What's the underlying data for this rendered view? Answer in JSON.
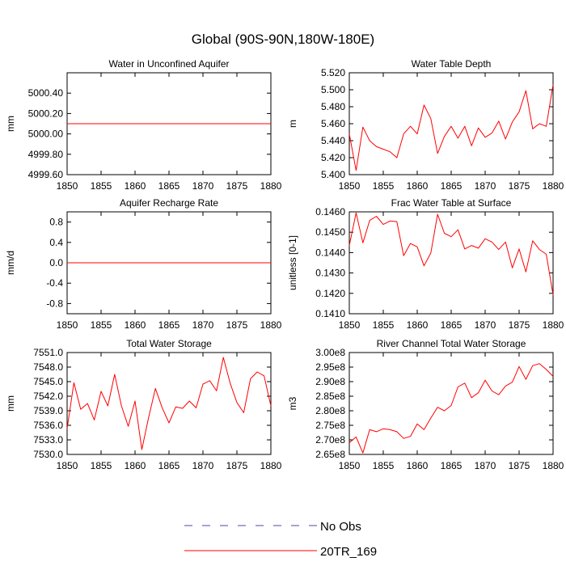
{
  "figure_title": "Global (90S-90N,180W-180E)",
  "legend": {
    "entries": [
      {
        "label": "No Obs",
        "color": "#4a4aa8",
        "style": "dashed"
      },
      {
        "label": "20TR_169",
        "color": "#ff0000",
        "style": "solid"
      }
    ]
  },
  "chart_data": [
    {
      "type": "line",
      "title": "Water in Unconfined Aquifer",
      "xlabel": "",
      "ylabel": "mm",
      "xlim": [
        1850,
        1880
      ],
      "ylim": [
        4999.6,
        5000.6
      ],
      "xticks": [
        1850,
        1855,
        1860,
        1865,
        1870,
        1875,
        1880
      ],
      "yticks": [
        4999.6,
        4999.8,
        5000.0,
        5000.2,
        5000.4
      ],
      "ytick_labels": [
        "4999.60",
        "4999.80",
        "5000.00",
        "5000.20",
        "5000.40"
      ],
      "series": [
        {
          "name": "20TR_169",
          "color": "#ff0000",
          "x": [
            1850,
            1880
          ],
          "values": [
            5000.1,
            5000.1
          ]
        }
      ]
    },
    {
      "type": "line",
      "title": "Water Table Depth",
      "xlabel": "",
      "ylabel": "m",
      "xlim": [
        1850,
        1880
      ],
      "ylim": [
        5.4,
        5.52
      ],
      "xticks": [
        1850,
        1855,
        1860,
        1865,
        1870,
        1875,
        1880
      ],
      "yticks": [
        5.4,
        5.42,
        5.44,
        5.46,
        5.48,
        5.5,
        5.52
      ],
      "ytick_labels": [
        "5.400",
        "5.420",
        "5.440",
        "5.460",
        "5.480",
        "5.500",
        "5.520"
      ],
      "series": [
        {
          "name": "20TR_169",
          "color": "#ff0000",
          "x": [
            1850,
            1851,
            1852,
            1853,
            1854,
            1855,
            1856,
            1857,
            1858,
            1859,
            1860,
            1861,
            1862,
            1863,
            1864,
            1865,
            1866,
            1867,
            1868,
            1869,
            1870,
            1871,
            1872,
            1873,
            1874,
            1875,
            1876,
            1877,
            1878,
            1879,
            1880
          ],
          "values": [
            5.448,
            5.405,
            5.456,
            5.44,
            5.433,
            5.43,
            5.427,
            5.42,
            5.448,
            5.457,
            5.448,
            5.482,
            5.466,
            5.425,
            5.445,
            5.457,
            5.443,
            5.457,
            5.434,
            5.455,
            5.444,
            5.449,
            5.463,
            5.442,
            5.462,
            5.474,
            5.499,
            5.454,
            5.46,
            5.457,
            5.506
          ]
        }
      ]
    },
    {
      "type": "line",
      "title": "Aquifer Recharge Rate",
      "xlabel": "",
      "ylabel": "mm/d",
      "xlim": [
        1850,
        1880
      ],
      "ylim": [
        -1.0,
        1.0
      ],
      "xticks": [
        1850,
        1855,
        1860,
        1865,
        1870,
        1875,
        1880
      ],
      "yticks": [
        -0.8,
        -0.4,
        0.0,
        0.4,
        0.8
      ],
      "ytick_labels": [
        "-0.8",
        "-0.4",
        "0.0",
        "0.4",
        "0.8"
      ],
      "series": [
        {
          "name": "20TR_169",
          "color": "#ff0000",
          "x": [
            1850,
            1880
          ],
          "values": [
            0.0,
            0.0
          ]
        }
      ]
    },
    {
      "type": "line",
      "title": "Frac Water Table at Surface",
      "xlabel": "",
      "ylabel": "unitless [0-1]",
      "xlim": [
        1850,
        1880
      ],
      "ylim": [
        0.141,
        0.146
      ],
      "xticks": [
        1850,
        1855,
        1860,
        1865,
        1870,
        1875,
        1880
      ],
      "yticks": [
        0.141,
        0.142,
        0.143,
        0.144,
        0.145,
        0.146
      ],
      "ytick_labels": [
        "0.1410",
        "0.1420",
        "0.1430",
        "0.1440",
        "0.1450",
        "0.1460"
      ],
      "series": [
        {
          "name": "20TR_169",
          "color": "#ff0000",
          "x": [
            1850,
            1851,
            1852,
            1853,
            1854,
            1855,
            1856,
            1857,
            1858,
            1859,
            1860,
            1861,
            1862,
            1863,
            1864,
            1865,
            1866,
            1867,
            1868,
            1869,
            1870,
            1871,
            1872,
            1873,
            1874,
            1875,
            1876,
            1877,
            1878,
            1879,
            1880
          ],
          "values": [
            0.14435,
            0.14595,
            0.14448,
            0.14558,
            0.14578,
            0.14538,
            0.14555,
            0.14552,
            0.14385,
            0.14445,
            0.14428,
            0.14335,
            0.14398,
            0.14588,
            0.14495,
            0.14478,
            0.14512,
            0.14418,
            0.14435,
            0.14422,
            0.14468,
            0.14452,
            0.14415,
            0.14452,
            0.14325,
            0.14418,
            0.14305,
            0.14458,
            0.14415,
            0.14392,
            0.14192
          ]
        }
      ]
    },
    {
      "type": "line",
      "title": "Total Water Storage",
      "xlabel": "",
      "ylabel": "mm",
      "xlim": [
        1850,
        1880
      ],
      "ylim": [
        7530.0,
        7551.0
      ],
      "xticks": [
        1850,
        1855,
        1860,
        1865,
        1870,
        1875,
        1880
      ],
      "yticks": [
        7530.0,
        7533.0,
        7536.0,
        7539.0,
        7542.0,
        7545.0,
        7548.0,
        7551.0
      ],
      "ytick_labels": [
        "7530.0",
        "7533.0",
        "7536.0",
        "7539.0",
        "7542.0",
        "7545.0",
        "7548.0",
        "7551.0"
      ],
      "series": [
        {
          "name": "20TR_169",
          "color": "#ff0000",
          "x": [
            1850,
            1851,
            1852,
            1853,
            1854,
            1855,
            1856,
            1857,
            1858,
            1859,
            1860,
            1861,
            1862,
            1863,
            1864,
            1865,
            1866,
            1867,
            1868,
            1869,
            1870,
            1871,
            1872,
            1873,
            1874,
            1875,
            1876,
            1877,
            1878,
            1879,
            1880
          ],
          "values": [
            7535.3,
            7544.8,
            7539.3,
            7540.5,
            7537.1,
            7543.0,
            7540.0,
            7546.5,
            7540.0,
            7535.8,
            7541.0,
            7531.0,
            7537.6,
            7543.6,
            7539.6,
            7536.5,
            7539.8,
            7539.5,
            7541.0,
            7539.6,
            7544.5,
            7545.2,
            7543.1,
            7550.0,
            7544.7,
            7540.7,
            7538.6,
            7545.6,
            7547.0,
            7546.2,
            7540.0
          ]
        }
      ]
    },
    {
      "type": "line",
      "title": "River Channel Total Water Storage",
      "xlabel": "",
      "ylabel": "m3",
      "xlim": [
        1850,
        1880
      ],
      "ylim": [
        265000000.0,
        300000000.0
      ],
      "xticks": [
        1850,
        1855,
        1860,
        1865,
        1870,
        1875,
        1880
      ],
      "yticks": [
        265000000.0,
        270000000.0,
        275000000.0,
        280000000.0,
        285000000.0,
        290000000.0,
        295000000.0,
        300000000.0
      ],
      "ytick_labels": [
        "2.65e8",
        "2.70e8",
        "2.75e8",
        "2.80e8",
        "2.85e8",
        "2.90e8",
        "2.95e8",
        "3.00e8"
      ],
      "series": [
        {
          "name": "20TR_169",
          "color": "#ff0000",
          "x": [
            1850,
            1851,
            1852,
            1853,
            1854,
            1855,
            1856,
            1857,
            1858,
            1859,
            1860,
            1861,
            1862,
            1863,
            1864,
            1865,
            1866,
            1867,
            1868,
            1869,
            1870,
            1871,
            1872,
            1873,
            1874,
            1875,
            1876,
            1877,
            1878,
            1879,
            1880
          ],
          "values": [
            269000000.0,
            271000000.0,
            265500000.0,
            273500000.0,
            272800000.0,
            273800000.0,
            273500000.0,
            272800000.0,
            270500000.0,
            271200000.0,
            275500000.0,
            273500000.0,
            277500000.0,
            281200000.0,
            280000000.0,
            281800000.0,
            288200000.0,
            289500000.0,
            284500000.0,
            286200000.0,
            290500000.0,
            286800000.0,
            285500000.0,
            288500000.0,
            289800000.0,
            295200000.0,
            290800000.0,
            295500000.0,
            296200000.0,
            294200000.0,
            291800000.0
          ]
        }
      ]
    }
  ]
}
